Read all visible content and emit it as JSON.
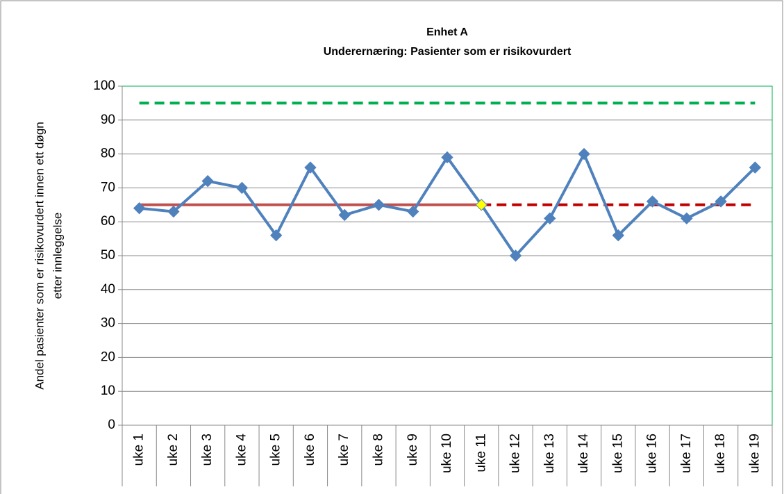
{
  "chart_data": {
    "type": "line",
    "title": "Enhet A",
    "subtitle": "Underernæring: Pasienter som er risikovurdert",
    "ylabel": [
      "Andel pasienter som  er risikovurdert innen ett døgn",
      "etter innleggelse"
    ],
    "categories": [
      "uke 1",
      "uke 2",
      "uke 3",
      "uke 4",
      "uke 5",
      "uke 6",
      "uke 7",
      "uke 8",
      "uke 9",
      "uke 10",
      "uke 11",
      "uke 12",
      "uke 13",
      "uke 14",
      "uke 15",
      "uke 16",
      "uke 17",
      "uke 18",
      "uke 19"
    ],
    "series": [
      {
        "color": "#4f81bd",
        "marker": "diamond",
        "dash": false,
        "width": 4,
        "values": [
          64,
          63,
          72,
          70,
          56,
          76,
          62,
          65,
          63,
          79,
          65,
          50,
          61,
          80,
          56,
          66,
          61,
          66,
          76
        ],
        "highlight": {
          "index": 10,
          "color": "#ffff00"
        }
      },
      {
        "color": "#c0504d",
        "marker": "none",
        "dash": false,
        "width": 4,
        "values": [
          65,
          65,
          65,
          65,
          65,
          65,
          65,
          65,
          65,
          65,
          65,
          null,
          null,
          null,
          null,
          null,
          null,
          null,
          null
        ]
      },
      {
        "color": "#c00000",
        "marker": "none",
        "dash": true,
        "width": 4,
        "values": [
          null,
          null,
          null,
          null,
          null,
          null,
          null,
          null,
          null,
          null,
          65,
          65,
          65,
          65,
          65,
          65,
          65,
          65,
          65
        ]
      },
      {
        "color": "#00b050",
        "marker": "none",
        "dash": true,
        "width": 4,
        "values": [
          95,
          95,
          95,
          95,
          95,
          95,
          95,
          95,
          95,
          95,
          95,
          95,
          95,
          95,
          95,
          95,
          95,
          95,
          95
        ]
      }
    ],
    "ylim": [
      0,
      100
    ],
    "yticks": [
      0,
      10,
      20,
      30,
      40,
      50,
      60,
      70,
      80,
      90,
      100
    ],
    "grid": true
  }
}
